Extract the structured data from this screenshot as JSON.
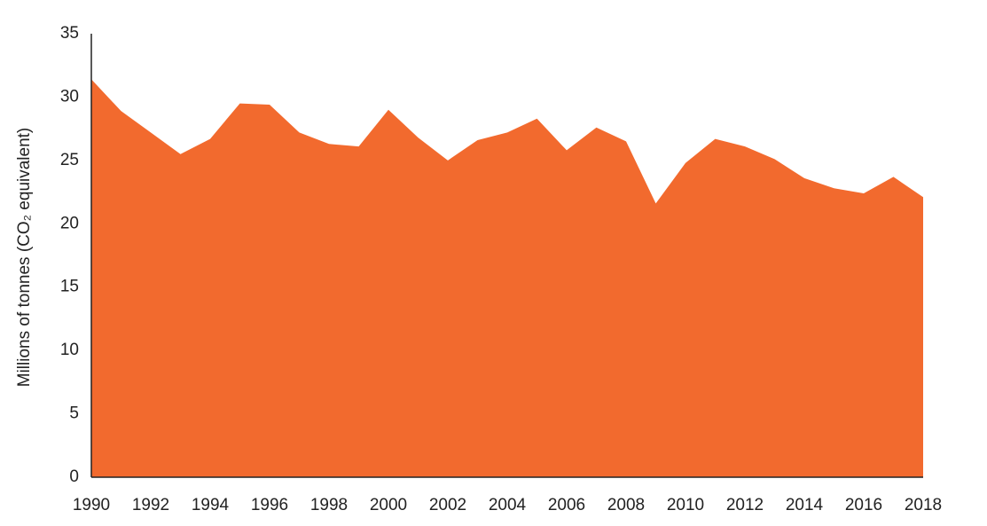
{
  "chart_data": {
    "type": "area",
    "y_label": "Millions of tonnes (CO₂ equivalent)",
    "x": [
      1990,
      1991,
      1992,
      1993,
      1994,
      1995,
      1996,
      1997,
      1998,
      1999,
      2000,
      2001,
      2002,
      2003,
      2004,
      2005,
      2006,
      2007,
      2008,
      2009,
      2010,
      2011,
      2012,
      2013,
      2014,
      2015,
      2016,
      2017,
      2018
    ],
    "values": [
      31.4,
      28.9,
      27.2,
      25.5,
      26.7,
      29.5,
      29.4,
      27.2,
      26.3,
      26.1,
      29.0,
      26.8,
      25.0,
      26.6,
      27.2,
      28.3,
      25.8,
      27.6,
      26.5,
      21.6,
      24.8,
      26.7,
      26.1,
      25.1,
      23.6,
      22.8,
      22.4,
      23.7,
      22.1
    ],
    "color": "#f26a2e",
    "xlim": [
      1990,
      2018
    ],
    "xticks": [
      1990,
      1992,
      1994,
      1996,
      1998,
      2000,
      2002,
      2004,
      2006,
      2008,
      2010,
      2012,
      2014,
      2016,
      2018
    ],
    "ylim": [
      0,
      35
    ],
    "yticks": [
      0,
      5,
      10,
      15,
      20,
      25,
      30,
      35
    ],
    "grid": false
  }
}
